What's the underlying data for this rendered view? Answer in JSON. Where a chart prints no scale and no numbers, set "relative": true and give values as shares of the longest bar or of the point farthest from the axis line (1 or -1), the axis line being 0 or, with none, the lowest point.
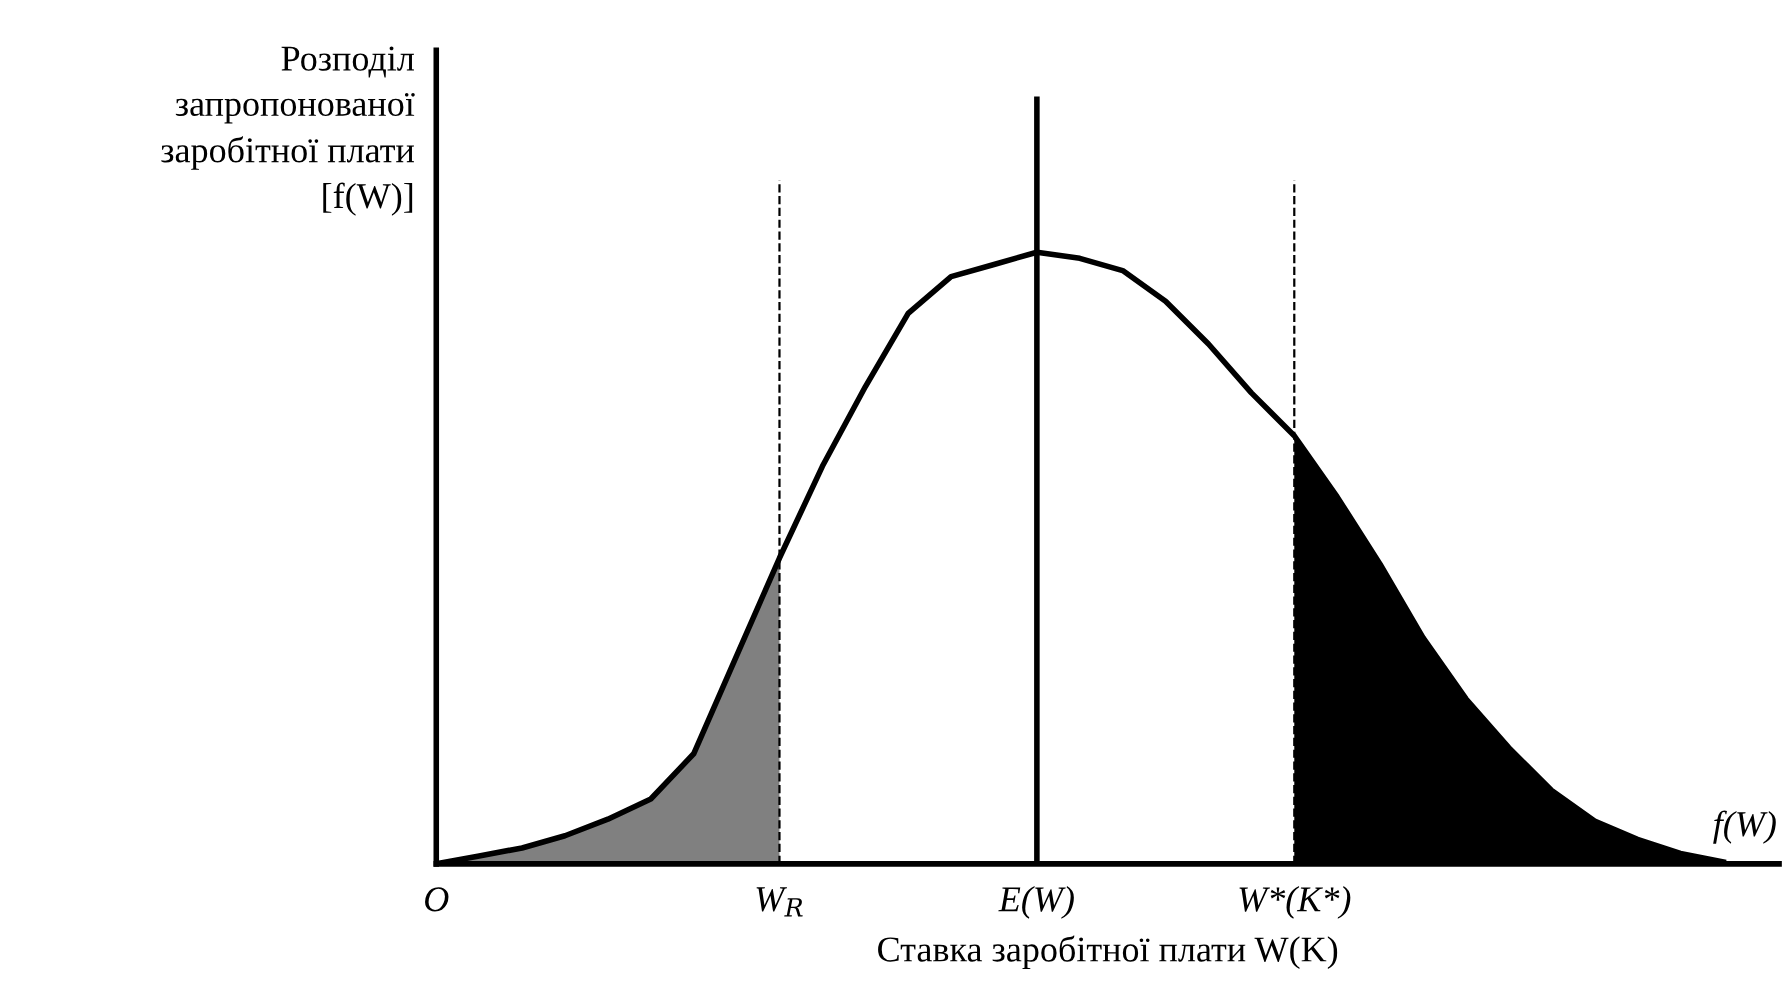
{
  "chart_data": {
    "type": "line",
    "relative": true,
    "xlabel": "Ставка заробітної плати W(K)",
    "ylabel": "Розподіл\nзапропонованої\nзаробітної плати\n[f(W)]",
    "categories": [
      "O",
      null,
      null,
      null,
      null,
      null,
      null,
      null,
      "W$_{R}$",
      null,
      null,
      null,
      null,
      null,
      "E(W)",
      null,
      null,
      null,
      null,
      null,
      "W*(K*)",
      null,
      null,
      null,
      null,
      null,
      null,
      null,
      null,
      null,
      null
    ],
    "series": [
      {
        "type": "area",
        "color": "#808080",
        "values": [
          0,
          0.013,
          0.026,
          0.046,
          0.073,
          0.106,
          0.18,
          0.34,
          0.5,
          null,
          null,
          null,
          null,
          null,
          null,
          null,
          null,
          null,
          null,
          null,
          null,
          null,
          null,
          null,
          null,
          null,
          null,
          null,
          null,
          null,
          null
        ]
      },
      {
        "type": "area",
        "color": "#000000",
        "values": [
          null,
          null,
          null,
          null,
          null,
          null,
          null,
          null,
          null,
          null,
          null,
          null,
          null,
          null,
          null,
          null,
          null,
          null,
          null,
          null,
          0.7,
          0.6,
          0.49,
          0.37,
          0.27,
          0.19,
          0.12,
          0.07,
          0.04,
          0.017,
          0.003
        ]
      },
      {
        "color": "#000000",
        "values": [
          0,
          0.013,
          0.026,
          0.046,
          0.073,
          0.106,
          0.18,
          0.34,
          0.5,
          0.65,
          0.78,
          0.9,
          0.96,
          0.98,
          1.0,
          0.99,
          0.97,
          0.92,
          0.85,
          0.77,
          0.7,
          0.6,
          0.49,
          0.37,
          0.27,
          0.19,
          0.12,
          0.07,
          0.04,
          0.017,
          0.003
        ]
      }
    ],
    "ref_lines": [
      {
        "axis": "x",
        "value": "W$_{R}$",
        "line_style": "dashed",
        "color": "#000000"
      },
      {
        "axis": "x",
        "value": "E(W)",
        "line_style": "solid",
        "color": "#000000"
      },
      {
        "axis": "x",
        "value": "W*(K*)",
        "line_style": "dashed",
        "color": "#000000"
      }
    ],
    "annotations": [
      "f(W)"
    ],
    "legend": false,
    "grid": false
  }
}
